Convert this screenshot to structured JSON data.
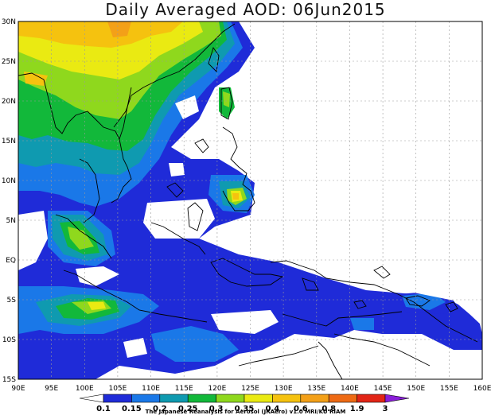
{
  "title": "Daily Averaged AOD: 06Jun2015",
  "map": {
    "lon_range": [
      90,
      160
    ],
    "lat_range": [
      -15,
      30
    ],
    "x_ticks": [
      "90E",
      "95E",
      "100E",
      "105E",
      "110E",
      "115E",
      "120E",
      "125E",
      "130E",
      "135E",
      "140E",
      "145E",
      "150E",
      "155E",
      "160E"
    ],
    "y_ticks": [
      "30N",
      "25N",
      "20N",
      "15N",
      "10N",
      "5N",
      "EQ",
      "5S",
      "10S",
      "15S"
    ],
    "grid": true
  },
  "colorbar": {
    "labels": [
      "0.1",
      "0.15",
      "0.2",
      "0.25",
      "0.3",
      "0.35",
      "0.4",
      "0.6",
      "0.8",
      "1.9",
      "3"
    ],
    "colors": [
      "#1f2bd8",
      "#1a78e8",
      "#0f9ab0",
      "#12b83a",
      "#8fd81d",
      "#eaea12",
      "#f5c20f",
      "#f3a018",
      "#ee6a14",
      "#e22516",
      "#8a1fd8"
    ]
  },
  "credit": "The Japanese Reanalysis for Aerosol (JRAero) v1.0 MRI/KU RIAM"
}
